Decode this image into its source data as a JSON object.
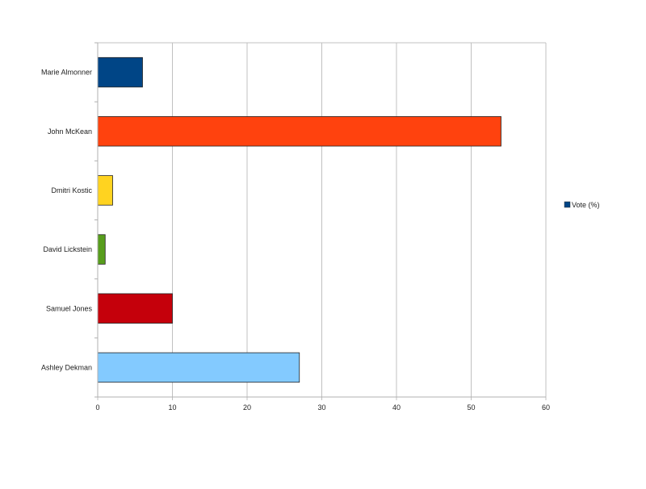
{
  "chart_data": {
    "type": "bar",
    "orientation": "horizontal",
    "title": "",
    "xlabel": "",
    "ylabel": "",
    "categories": [
      "Marie Almonner",
      "John McKean",
      "Dmitri Kostic",
      "David Lickstein",
      "Samuel Jones",
      "Ashley Dekman"
    ],
    "series": [
      {
        "name": "Vote (%)",
        "values": [
          6,
          54,
          2,
          1,
          10,
          27
        ]
      }
    ],
    "bar_colors": [
      "#004586",
      "#ff420e",
      "#ffd320",
      "#579d1c",
      "#c5000b",
      "#83caff"
    ],
    "legend_color": "#004586",
    "xlim": [
      0,
      60
    ],
    "xticks": [
      0,
      10,
      20,
      30,
      40,
      50,
      60
    ],
    "grid": true,
    "legend_position": "right"
  }
}
